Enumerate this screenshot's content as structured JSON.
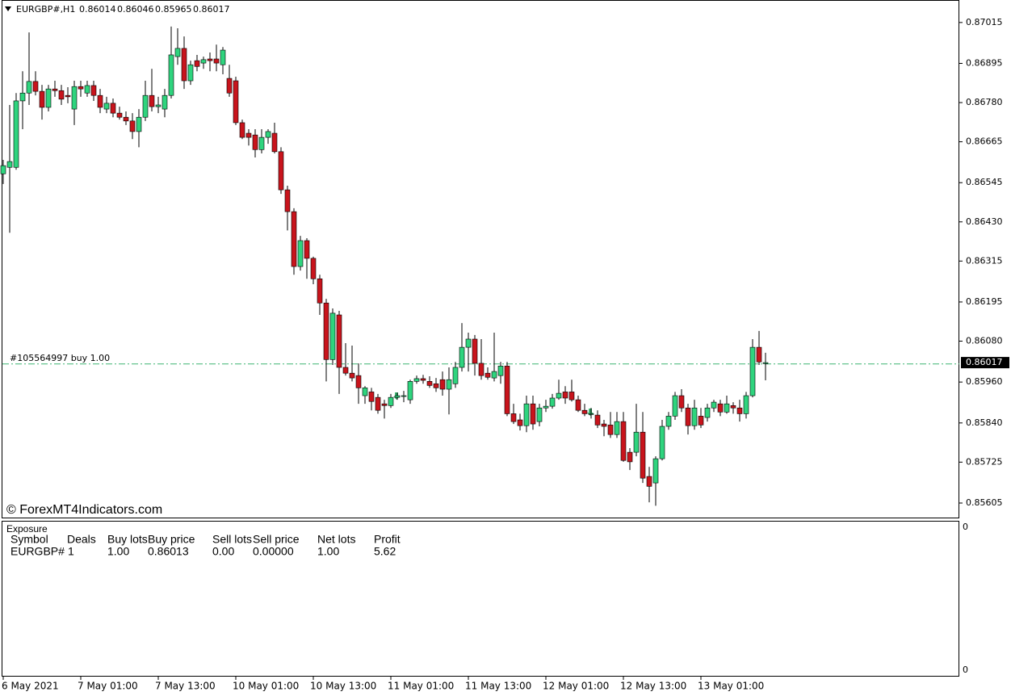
{
  "chart_data": {
    "type": "candlestick",
    "symbol": "EURGBP#,H1",
    "categories": [
      "6 May 2021",
      null,
      null,
      null,
      null,
      null,
      null,
      null,
      null,
      null,
      null,
      null,
      "7 May 01:00",
      null,
      null,
      null,
      null,
      null,
      null,
      null,
      null,
      null,
      null,
      null,
      "7 May 13:00",
      null,
      null,
      null,
      null,
      null,
      null,
      null,
      null,
      null,
      null,
      null,
      "10 May 01:00",
      null,
      null,
      null,
      null,
      null,
      null,
      null,
      null,
      null,
      null,
      null,
      "10 May 13:00",
      null,
      null,
      null,
      null,
      null,
      null,
      null,
      null,
      null,
      null,
      null,
      "11 May 01:00",
      null,
      null,
      null,
      null,
      null,
      null,
      null,
      null,
      null,
      null,
      null,
      "11 May 13:00",
      null,
      null,
      null,
      null,
      null,
      null,
      null,
      null,
      null,
      null,
      null,
      "12 May 01:00",
      null,
      null,
      null,
      null,
      null,
      null,
      null,
      null,
      null,
      null,
      null,
      "12 May 13:00",
      null,
      null,
      null,
      null,
      null,
      null,
      null,
      null,
      null,
      null,
      null,
      "13 May 01:00",
      null,
      null,
      null,
      null,
      null,
      null,
      null,
      null,
      null,
      null
    ],
    "open": [
      0.86571,
      0.8659,
      0.8659,
      0.86785,
      0.86808,
      0.86842,
      0.86813,
      0.86766,
      0.8682,
      0.86815,
      0.86801,
      0.86761,
      0.86827,
      0.86808,
      0.8683,
      0.86801,
      0.86761,
      0.86778,
      0.86749,
      0.86737,
      0.86726,
      0.86695,
      0.86737,
      0.86801,
      0.86768,
      0.86761,
      0.86801,
      0.86915,
      0.86939,
      0.86844,
      0.86903,
      0.86896,
      0.86908,
      0.86908,
      0.86891,
      0.86851,
      0.86844,
      0.86721,
      0.8669,
      0.86685,
      0.86642,
      0.86678,
      0.8669,
      0.86636,
      0.86524,
      0.8646,
      0.86299,
      0.86375,
      0.86323,
      0.86263,
      0.86192,
      0.86026,
      0.86157,
      0.86003,
      0.85986,
      0.85979,
      0.8592,
      0.85931,
      0.85915,
      0.85896,
      0.85891,
      0.85915,
      0.8592,
      0.85908,
      0.85962,
      0.8597,
      0.85962,
      0.85955,
      0.85967,
      0.85939,
      0.85955,
      0.86003,
      0.86062,
      0.86086,
      0.86015,
      0.85986,
      0.85972,
      0.85979,
      0.86007,
      0.85867,
      0.85849,
      0.85832,
      0.85896,
      0.85844,
      0.85884,
      0.85889,
      0.85913,
      0.85931,
      0.85931,
      0.85908,
      0.85877,
      0.85867,
      0.85863,
      0.85837,
      0.85834,
      0.85806,
      0.85844,
      0.85754,
      0.85754,
      0.85813,
      0.85683,
      0.85664,
      0.85735,
      0.8583,
      0.8586,
      0.8592,
      0.85884,
      0.85832,
      0.8586,
      0.85856,
      0.85884,
      0.85896,
      0.85872,
      0.85891,
      0.85884,
      0.85867,
      0.8592,
      0.86062,
      0.86014
    ],
    "high": [
      0.86612,
      0.86773,
      0.86808,
      0.86872,
      0.86986,
      0.86872,
      0.86832,
      0.86832,
      0.86844,
      0.86832,
      0.86825,
      0.86844,
      0.86844,
      0.86844,
      0.86844,
      0.8682,
      0.86797,
      0.86792,
      0.86768,
      0.86754,
      0.86749,
      0.86761,
      0.86844,
      0.86879,
      0.86797,
      0.8682,
      0.87003,
      0.86998,
      0.86974,
      0.86903,
      0.8692,
      0.86915,
      0.86927,
      0.8695,
      0.86943,
      0.86891,
      0.86856,
      0.8673,
      0.86702,
      0.86702,
      0.86702,
      0.86702,
      0.86721,
      0.86649,
      0.86536,
      0.8647,
      0.86389,
      0.86382,
      0.86328,
      0.86275,
      0.86204,
      0.86176,
      0.86169,
      0.86074,
      0.86067,
      0.86015,
      0.85948,
      0.85943,
      0.85925,
      0.85908,
      0.85925,
      0.85929,
      0.85934,
      0.85967,
      0.85979,
      0.85981,
      0.85977,
      0.85972,
      0.85991,
      0.86003,
      0.86019,
      0.86133,
      0.86105,
      0.86098,
      0.86086,
      0.86003,
      0.86105,
      0.86019,
      0.86019,
      0.85896,
      0.85867,
      0.8592,
      0.8592,
      0.85896,
      0.85908,
      0.85925,
      0.85967,
      0.85948,
      0.85967,
      0.8592,
      0.85896,
      0.85884,
      0.85877,
      0.85849,
      0.85872,
      0.85872,
      0.85872,
      0.85766,
      0.85896,
      0.85872,
      0.85711,
      0.85742,
      0.85849,
      0.85872,
      0.85931,
      0.85939,
      0.85896,
      0.85908,
      0.85884,
      0.85896,
      0.85908,
      0.85908,
      0.8592,
      0.85901,
      0.85908,
      0.85931,
      0.86086,
      0.8611,
      0.86046
    ],
    "low": [
      0.86541,
      0.86398,
      0.86583,
      0.86702,
      0.86773,
      0.86801,
      0.8673,
      0.86754,
      0.86797,
      0.86773,
      0.86778,
      0.86714,
      0.86797,
      0.86797,
      0.86785,
      0.86749,
      0.86749,
      0.86737,
      0.8673,
      0.86714,
      0.86673,
      0.86649,
      0.86726,
      0.86754,
      0.86749,
      0.86737,
      0.86792,
      0.86891,
      0.8682,
      0.86832,
      0.86872,
      0.86879,
      0.86872,
      0.86872,
      0.86863,
      0.86797,
      0.86714,
      0.86673,
      0.86654,
      0.86619,
      0.86631,
      0.86659,
      0.86631,
      0.86512,
      0.86405,
      0.86275,
      0.86287,
      0.86263,
      0.86247,
      0.86157,
      0.85962,
      0.8601,
      0.85925,
      0.85979,
      0.85962,
      0.85896,
      0.85896,
      0.85877,
      0.85867,
      0.85853,
      0.85884,
      0.85908,
      0.85901,
      0.85896,
      0.85955,
      0.85955,
      0.85943,
      0.85931,
      0.8592,
      0.85865,
      0.85943,
      0.85991,
      0.85991,
      0.85979,
      0.85967,
      0.85967,
      0.85962,
      0.85955,
      0.8586,
      0.85837,
      0.85818,
      0.85813,
      0.8582,
      0.8583,
      0.85872,
      0.85882,
      0.85908,
      0.85896,
      0.85903,
      0.85872,
      0.8586,
      0.85853,
      0.85825,
      0.85801,
      0.85796,
      0.85796,
      0.85726,
      0.85702,
      0.85742,
      0.85664,
      0.85607,
      0.85597,
      0.8573,
      0.8582,
      0.85849,
      0.85872,
      0.85806,
      0.8582,
      0.85825,
      0.85844,
      0.85872,
      0.8586,
      0.85867,
      0.85867,
      0.85844,
      0.85853,
      0.85915,
      0.8601,
      0.85965
    ],
    "close": [
      0.86595,
      0.86607,
      0.86785,
      0.86808,
      0.86842,
      0.86813,
      0.86766,
      0.8682,
      0.86815,
      0.8679,
      0.86797,
      0.86827,
      0.8682,
      0.8683,
      0.86801,
      0.86766,
      0.86778,
      0.86749,
      0.86737,
      0.86726,
      0.86695,
      0.86737,
      0.86801,
      0.86768,
      0.86773,
      0.86801,
      0.8692,
      0.86939,
      0.86844,
      0.86891,
      0.86886,
      0.86906,
      0.86903,
      0.86896,
      0.86934,
      0.86808,
      0.86721,
      0.86678,
      0.86678,
      0.86642,
      0.86678,
      0.86695,
      0.86636,
      0.86524,
      0.8646,
      0.86299,
      0.86375,
      0.86323,
      0.86263,
      0.86192,
      0.86026,
      0.86162,
      0.86003,
      0.85986,
      0.85972,
      0.85943,
      0.85943,
      0.85903,
      0.85877,
      0.85891,
      0.85915,
      0.8592,
      0.8592,
      0.85962,
      0.8597,
      0.85965,
      0.8595,
      0.85943,
      0.85939,
      0.85967,
      0.86003,
      0.86062,
      0.86086,
      0.86015,
      0.85979,
      0.85974,
      0.85991,
      0.86007,
      0.85867,
      0.85844,
      0.85832,
      0.85896,
      0.85837,
      0.85884,
      0.85889,
      0.85913,
      0.85927,
      0.85913,
      0.85908,
      0.85877,
      0.85867,
      0.85867,
      0.85834,
      0.8583,
      0.85806,
      0.85844,
      0.8573,
      0.85726,
      0.85813,
      0.85678,
      0.85654,
      0.85735,
      0.8583,
      0.8586,
      0.8592,
      0.85884,
      0.85832,
      0.85884,
      0.85834,
      0.85884,
      0.85901,
      0.85872,
      0.85896,
      0.85884,
      0.85867,
      0.8592,
      0.86062,
      0.86019,
      0.86017
    ],
    "bull_color": "#2fd47e",
    "bear_color": "#c8141c",
    "ylim": [
      0.8556,
      0.87081
    ],
    "yticks": [
      0.87015,
      0.86895,
      {
        "value": 0.8678,
        "label": "0.86780"
      },
      0.86665,
      0.86545,
      {
        "value": 0.8643,
        "label": "0.86430"
      },
      0.86315,
      0.86195,
      {
        "value": 0.8608,
        "label": "0.86080"
      },
      {
        "value": 0.8596,
        "label": "0.85960"
      },
      {
        "value": 0.8584,
        "label": "0.85840"
      },
      0.85725,
      0.85605
    ],
    "order": {
      "label": "#105564997 buy 1.00",
      "price": 0.86013,
      "color": "#3cb371"
    },
    "watermark": "© ForexMT4Indicators.com"
  },
  "exposure": {
    "title": "Exposure",
    "columns": [
      "Symbol",
      "Deals",
      "Buy lots",
      "Buy price",
      "Sell lots",
      "Sell price",
      "Net lots",
      "Profit"
    ],
    "rows": [
      [
        "EURGBP#",
        "1",
        "1.00",
        "0.86013",
        "0.00",
        "0.00000",
        "1.00",
        "5.62"
      ]
    ],
    "axis_labels": [
      "0",
      "0"
    ]
  }
}
